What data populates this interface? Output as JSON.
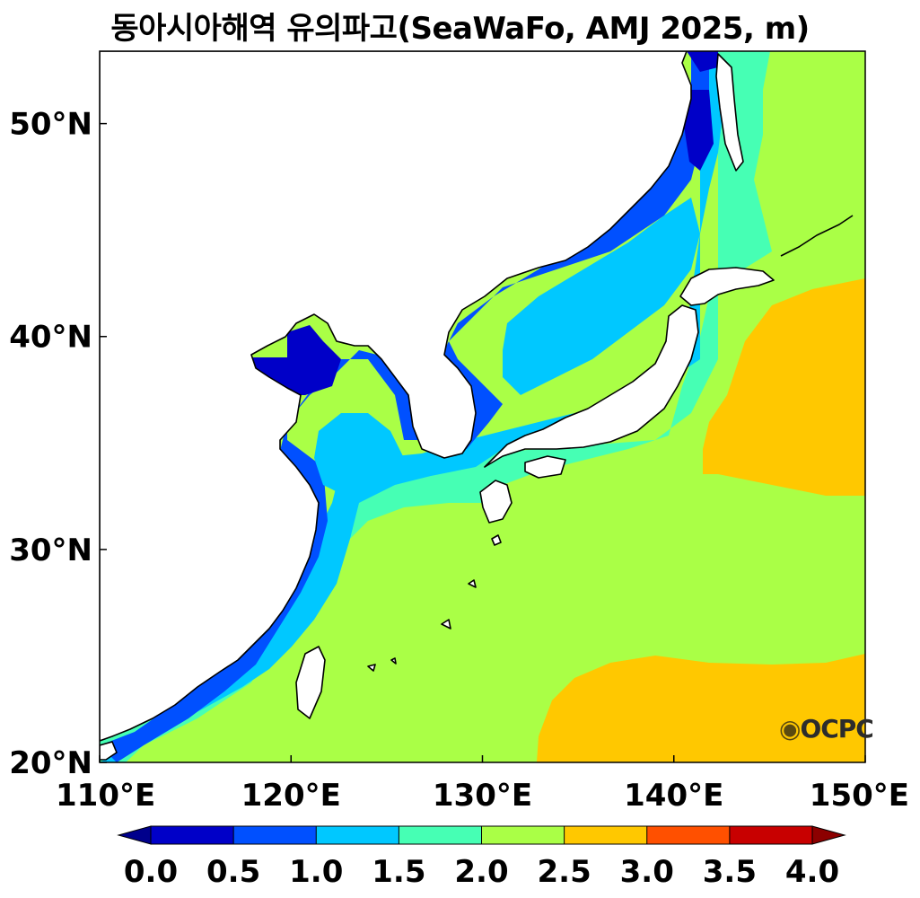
{
  "title": "동아시아해역 유의파고(SeaWaFo, AMJ 2025, m)",
  "map": {
    "lon_range": [
      110,
      150
    ],
    "lat_range": [
      20,
      53.4
    ],
    "lon_ticks": [
      {
        "value": 110,
        "label": "110°E"
      },
      {
        "value": 120,
        "label": "120°E"
      },
      {
        "value": 130,
        "label": "130°E"
      },
      {
        "value": 140,
        "label": "140°E"
      },
      {
        "value": 150,
        "label": "150°E"
      }
    ],
    "lat_ticks": [
      {
        "value": 20,
        "label": "20°N"
      },
      {
        "value": 30,
        "label": "30°N"
      },
      {
        "value": 40,
        "label": "40°N"
      },
      {
        "value": 50,
        "label": "50°N"
      }
    ],
    "land_color": "#ffffff",
    "coastline_color": "#000000"
  },
  "colorbar": {
    "levels": [
      "0.0",
      "0.5",
      "1.0",
      "1.5",
      "2.0",
      "2.5",
      "3.0",
      "3.5",
      "4.0"
    ],
    "colors": [
      "#0000c8",
      "#0050ff",
      "#00c8ff",
      "#46ffb4",
      "#aaff46",
      "#ffc800",
      "#ff5000",
      "#c80000"
    ],
    "under_color": "#00008c",
    "over_color": "#8c0000"
  },
  "logo": {
    "text": "OCPC"
  }
}
